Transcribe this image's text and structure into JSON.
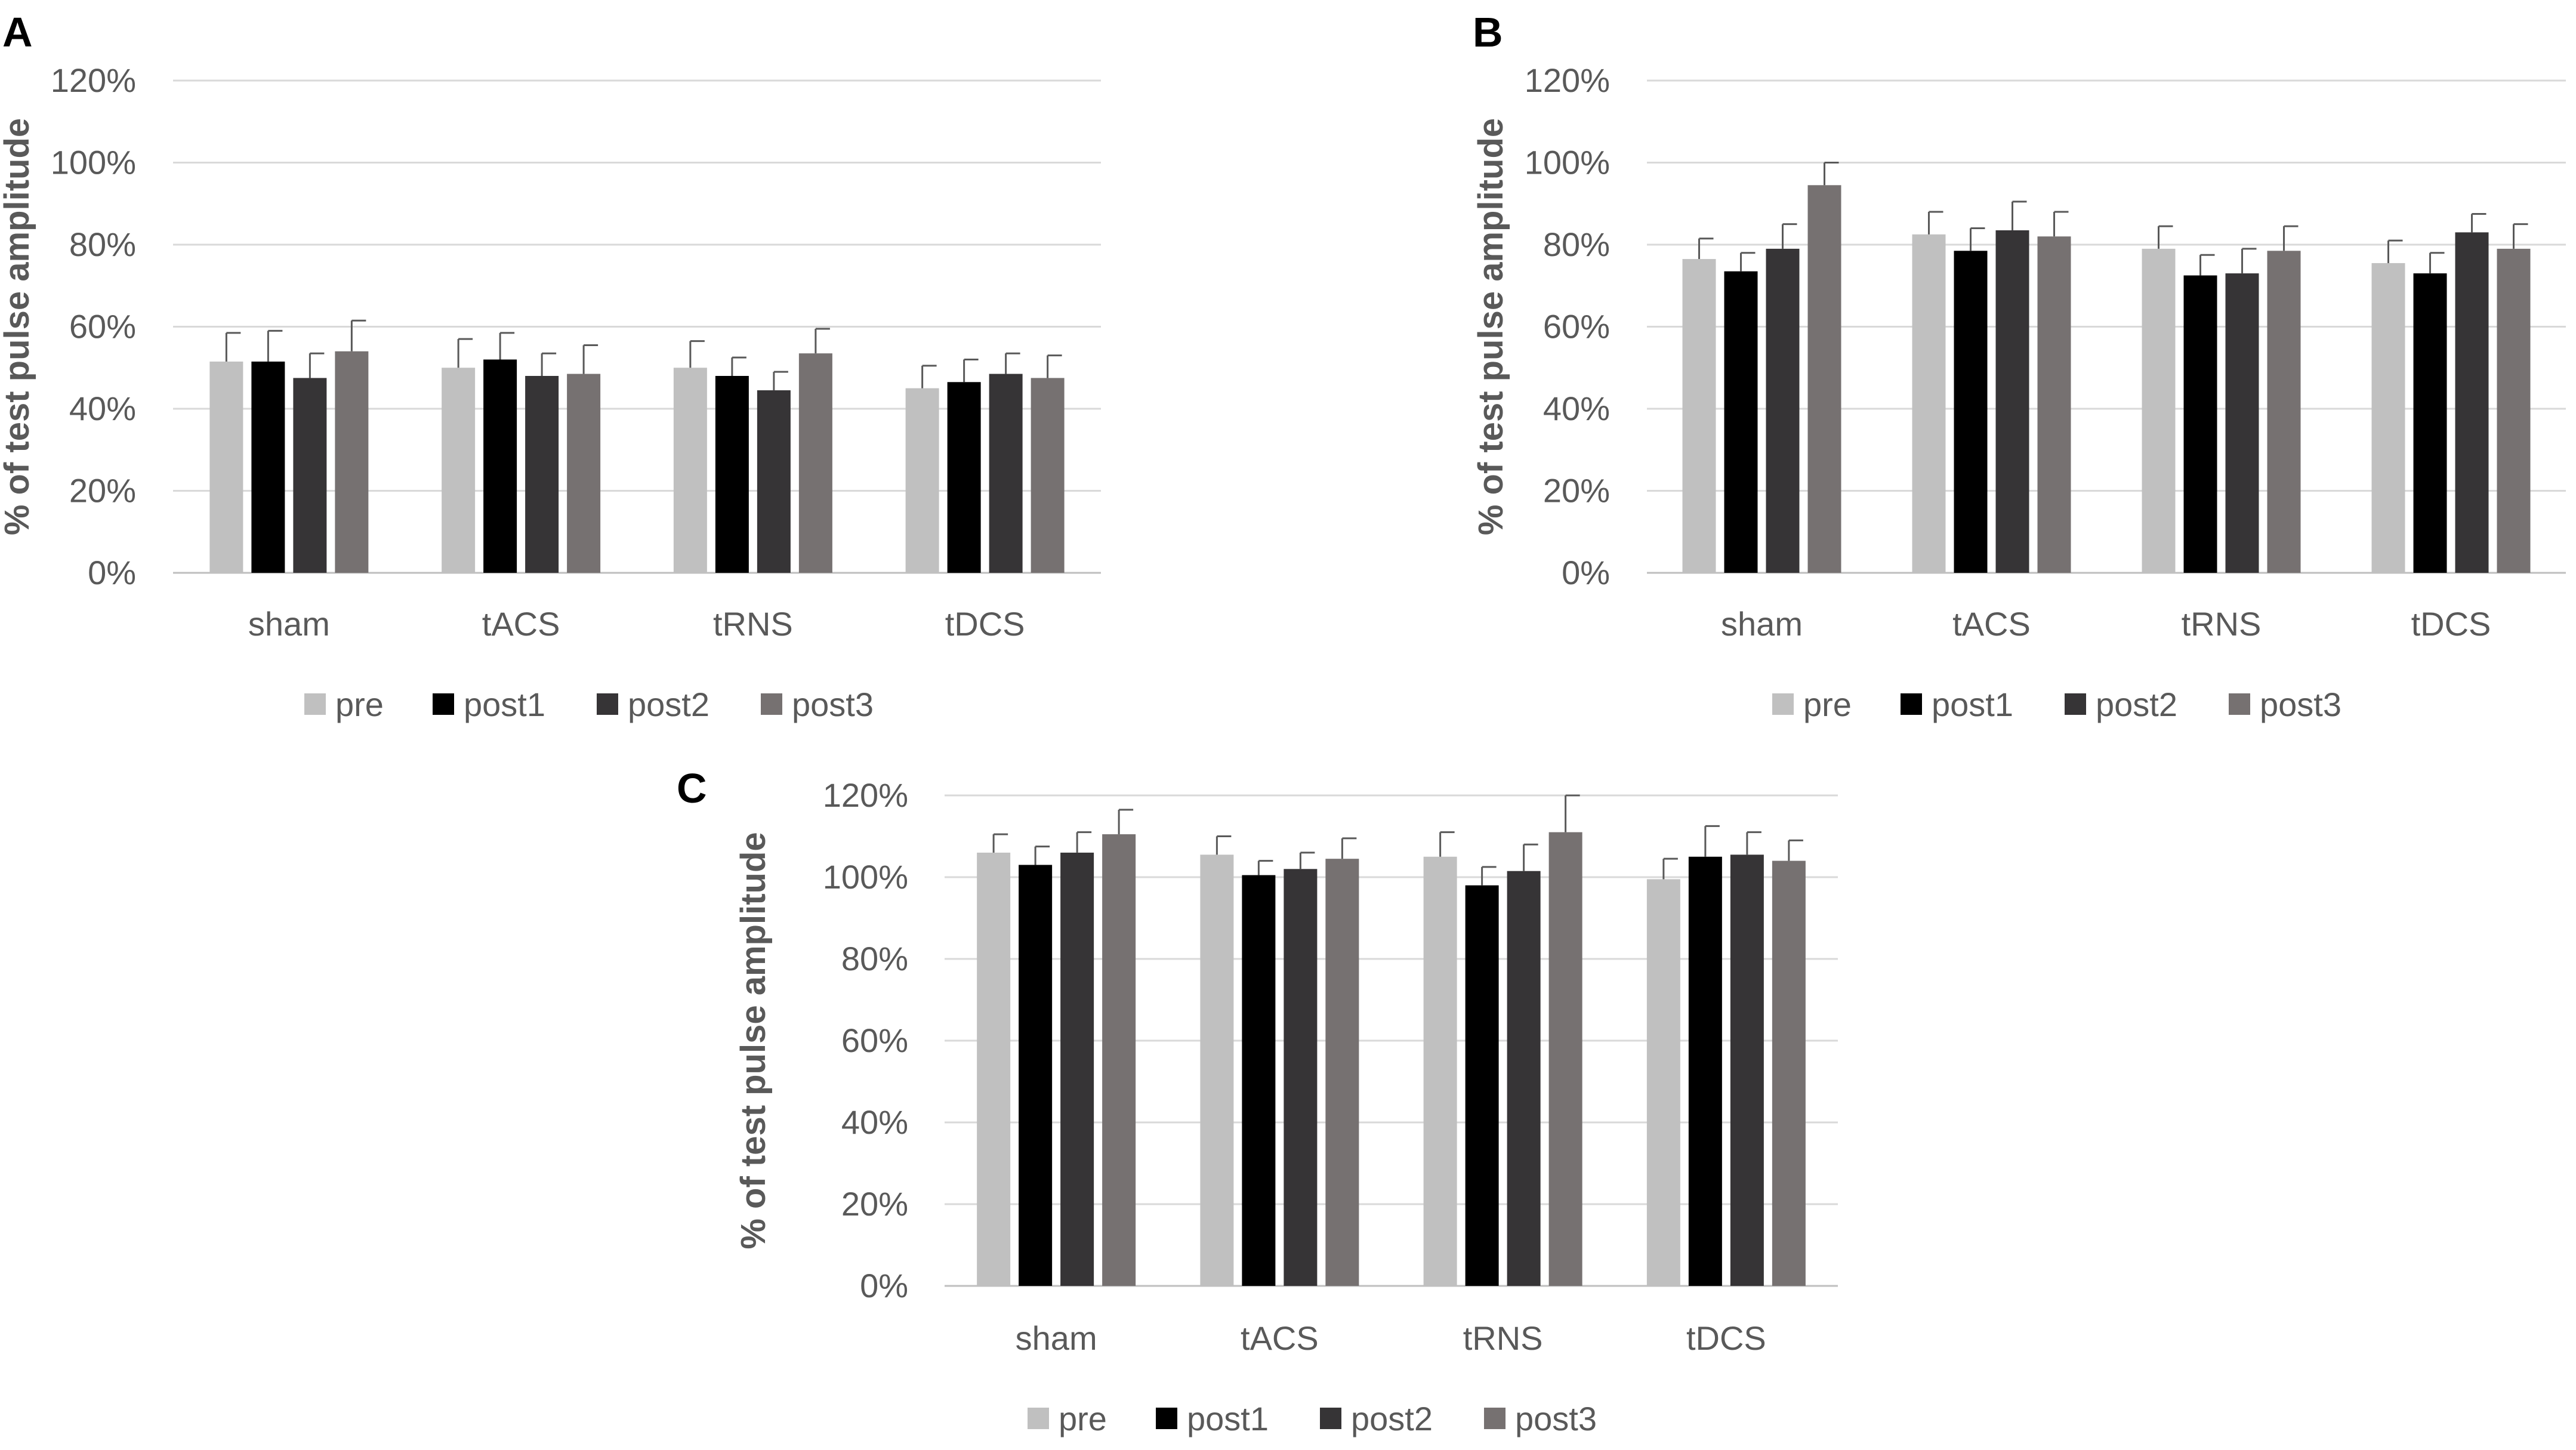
{
  "figure": {
    "series_names": [
      "pre",
      "post1",
      "post2",
      "post3"
    ],
    "series_colors": [
      "#c0c0c0",
      "#000000",
      "#363436",
      "#767171"
    ],
    "gridline_color": "#d9d9d9",
    "errorbar_color": "#595959"
  },
  "chart_data": [
    {
      "type": "bar",
      "panel": "A",
      "title": "",
      "xlabel": "",
      "ylabel": "% of test pulse amplitude",
      "ylim": [
        0,
        120
      ],
      "yticks": [
        "0%",
        "20%",
        "40%",
        "60%",
        "80%",
        "100%",
        "120%"
      ],
      "categories": [
        "sham",
        "tACS",
        "tRNS",
        "tDCS"
      ],
      "legend_position": "bottom",
      "series": [
        {
          "name": "pre",
          "values": [
            51.5,
            50.0,
            50.0,
            45.0
          ],
          "errors": [
            7.0,
            7.0,
            6.5,
            5.5
          ]
        },
        {
          "name": "post1",
          "values": [
            51.5,
            52.0,
            48.0,
            46.5
          ],
          "errors": [
            7.5,
            6.5,
            4.5,
            5.5
          ]
        },
        {
          "name": "post2",
          "values": [
            47.5,
            48.0,
            44.5,
            48.5
          ],
          "errors": [
            6.0,
            5.5,
            4.5,
            5.0
          ]
        },
        {
          "name": "post3",
          "values": [
            54.0,
            48.5,
            53.5,
            47.5
          ],
          "errors": [
            7.5,
            7.0,
            6.0,
            5.5
          ]
        }
      ]
    },
    {
      "type": "bar",
      "panel": "B",
      "title": "",
      "xlabel": "",
      "ylabel": "% of test pulse amplitude",
      "ylim": [
        0,
        120
      ],
      "yticks": [
        "0%",
        "20%",
        "40%",
        "60%",
        "80%",
        "100%",
        "120%"
      ],
      "categories": [
        "sham",
        "tACS",
        "tRNS",
        "tDCS"
      ],
      "legend_position": "bottom",
      "series": [
        {
          "name": "pre",
          "values": [
            76.5,
            82.5,
            79.0,
            75.5
          ],
          "errors": [
            5.0,
            5.5,
            5.5,
            5.5
          ]
        },
        {
          "name": "post1",
          "values": [
            73.5,
            78.5,
            72.5,
            73.0
          ],
          "errors": [
            4.5,
            5.5,
            5.0,
            5.0
          ]
        },
        {
          "name": "post2",
          "values": [
            79.0,
            83.5,
            73.0,
            83.0
          ],
          "errors": [
            6.0,
            7.0,
            6.0,
            4.5
          ]
        },
        {
          "name": "post3",
          "values": [
            94.5,
            82.0,
            78.5,
            79.0
          ],
          "errors": [
            5.5,
            6.0,
            6.0,
            6.0
          ]
        }
      ]
    },
    {
      "type": "bar",
      "panel": "C",
      "title": "",
      "xlabel": "",
      "ylabel": "% of test pulse amplitude",
      "ylim": [
        0,
        120
      ],
      "yticks": [
        "0%",
        "20%",
        "40%",
        "60%",
        "80%",
        "100%",
        "120%"
      ],
      "categories": [
        "sham",
        "tACS",
        "tRNS",
        "tDCS"
      ],
      "legend_position": "bottom",
      "series": [
        {
          "name": "pre",
          "values": [
            106.0,
            105.5,
            105.0,
            99.5
          ],
          "errors": [
            4.5,
            4.5,
            6.0,
            5.0
          ]
        },
        {
          "name": "post1",
          "values": [
            103.0,
            100.5,
            98.0,
            105.0
          ],
          "errors": [
            4.5,
            3.5,
            4.5,
            7.5
          ]
        },
        {
          "name": "post2",
          "values": [
            106.0,
            102.0,
            101.5,
            105.5
          ],
          "errors": [
            5.0,
            4.0,
            6.5,
            5.5
          ]
        },
        {
          "name": "post3",
          "values": [
            110.5,
            104.5,
            111.0,
            104.0
          ],
          "errors": [
            6.0,
            5.0,
            9.0,
            5.0
          ]
        }
      ]
    }
  ]
}
